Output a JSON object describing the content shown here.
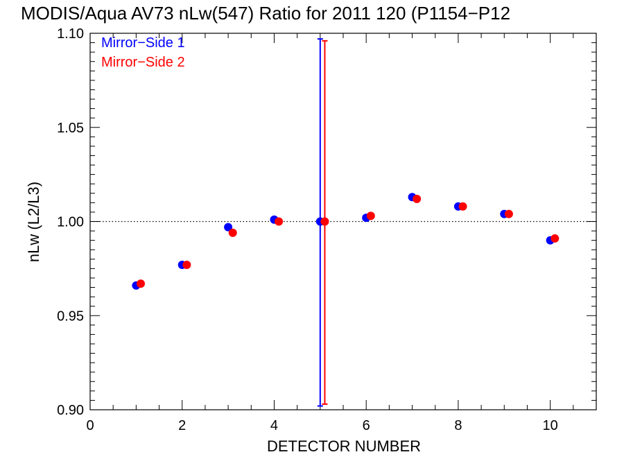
{
  "chart_data": {
    "type": "scatter",
    "title": "MODIS/Aqua AV73 nLw(547) Ratio for 2011 120 (P1154−P12",
    "xlabel": "DETECTOR NUMBER",
    "ylabel": "nLw (L2/L3)",
    "xlim": [
      0,
      11
    ],
    "ylim": [
      0.9,
      1.1
    ],
    "x_ticks": [
      0,
      2,
      4,
      6,
      8,
      10
    ],
    "x_tick_labels": [
      "0",
      "2",
      "4",
      "6",
      "8",
      "10"
    ],
    "y_ticks": [
      0.9,
      0.95,
      1.0,
      1.05,
      1.1
    ],
    "y_tick_labels": [
      "0.90",
      "0.95",
      "1.00",
      "1.05",
      "1.10"
    ],
    "reference_line": {
      "y": 1.0,
      "style": "dotted"
    },
    "grid": false,
    "legend_placement": "top-left",
    "series": [
      {
        "name": "Mirror−Side 1",
        "color": "#0000ff",
        "x": [
          1,
          2,
          3,
          4,
          5,
          6,
          7,
          8,
          9,
          10
        ],
        "y": [
          0.966,
          0.977,
          0.997,
          1.001,
          1.0,
          1.002,
          1.013,
          1.008,
          1.004,
          0.99
        ],
        "error_bar": {
          "x": 5,
          "low": 0.902,
          "high": 1.097
        }
      },
      {
        "name": "Mirror−Side 2",
        "color": "#ff0000",
        "x": [
          1.1,
          2.1,
          3.1,
          4.1,
          5.1,
          6.1,
          7.1,
          8.1,
          9.1,
          10.1
        ],
        "y": [
          0.967,
          0.977,
          0.994,
          1.0,
          1.0,
          1.003,
          1.012,
          1.008,
          1.004,
          0.991
        ],
        "error_bar": {
          "x": 5.1,
          "low": 0.903,
          "high": 1.096
        }
      }
    ]
  }
}
